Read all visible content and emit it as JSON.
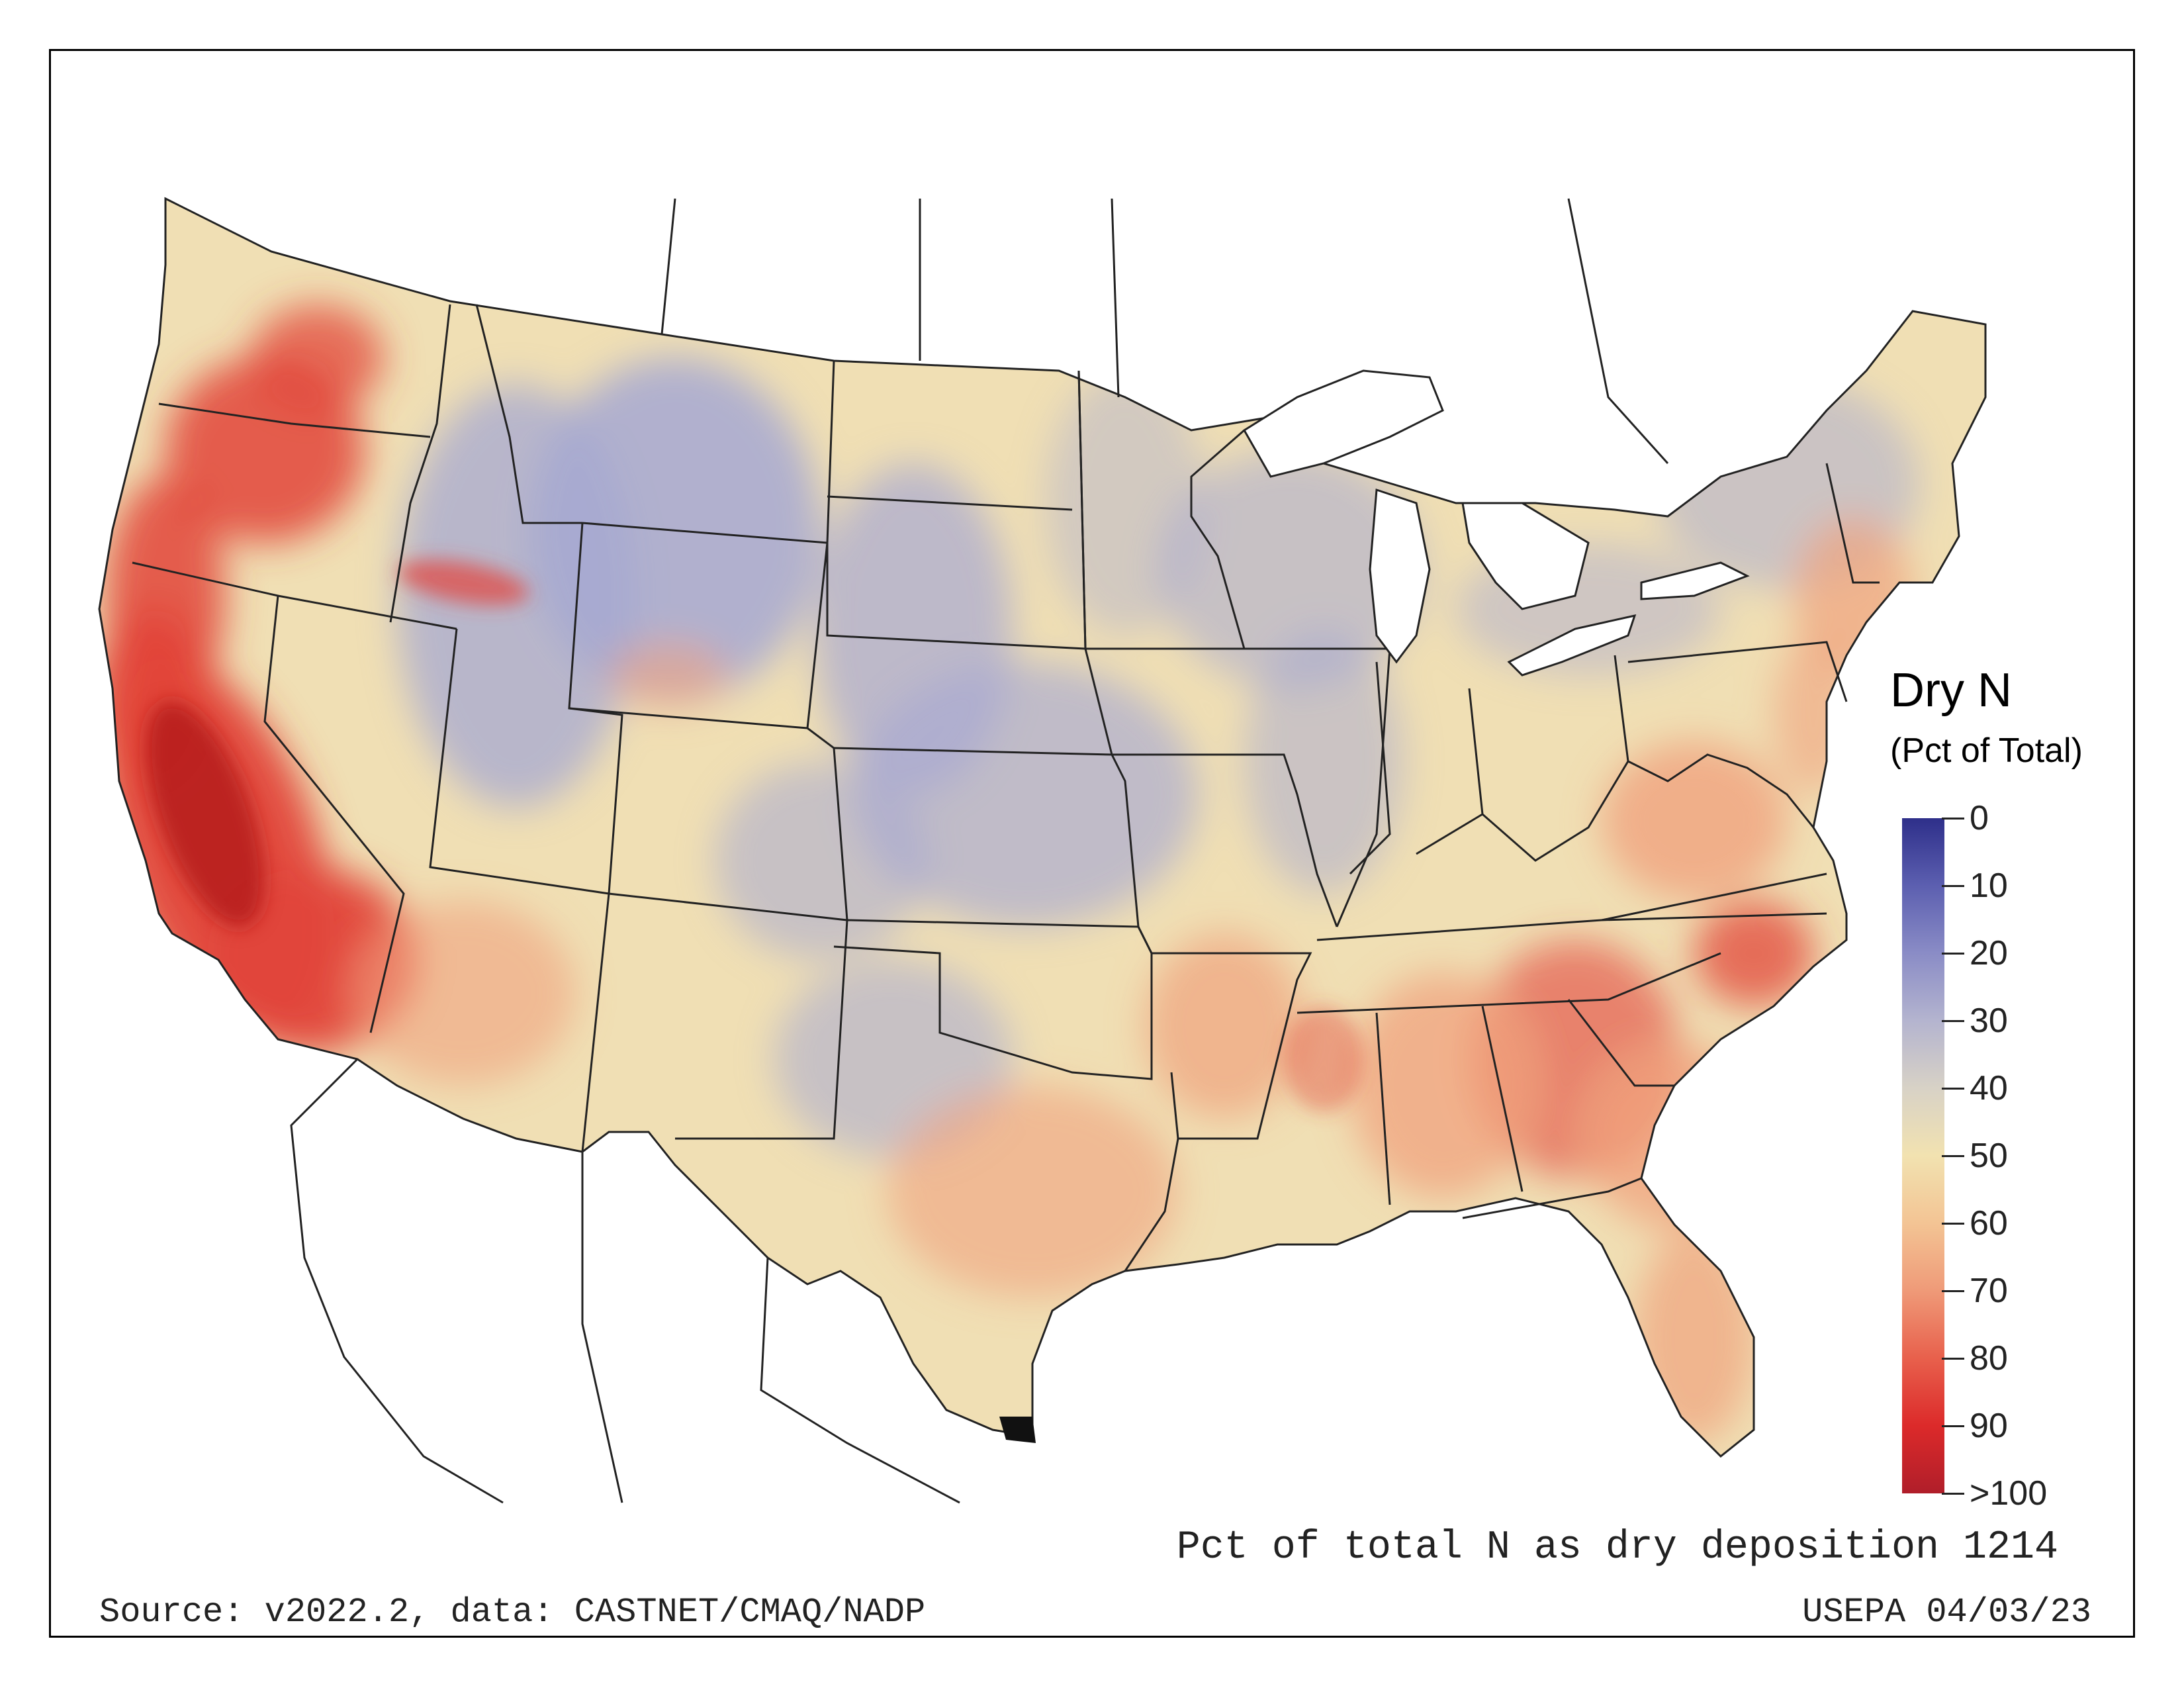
{
  "map": {
    "legend": {
      "title": "Dry N",
      "subtitle": "(Pct of Total)",
      "ticks": [
        "0",
        "10",
        "20",
        "30",
        "40",
        "50",
        "60",
        "70",
        "80",
        "90",
        ">100"
      ],
      "colors": [
        "#2e2f8a",
        "#5c5fb0",
        "#8a8cc6",
        "#b4b4cf",
        "#d8d2c6",
        "#f2e2b0",
        "#f3c494",
        "#ef9a78",
        "#e8604c",
        "#dc2a2a",
        "#b01e2a"
      ]
    },
    "caption": {
      "title": "Pct of total N as dry deposition 1214",
      "source": "Source: v2022.2, data: CASTNET/CMAQ/NADP",
      "agency": "USEPA 04/03/23"
    },
    "colors": {
      "land_base": "#f0dfb4",
      "blue_zone": "#a6a8d2",
      "red_zone": "#e2453a",
      "dark_red_zone": "#b3161c",
      "orange_zone": "#f0a27e",
      "water": "#ffffff",
      "border": "#222222"
    }
  }
}
